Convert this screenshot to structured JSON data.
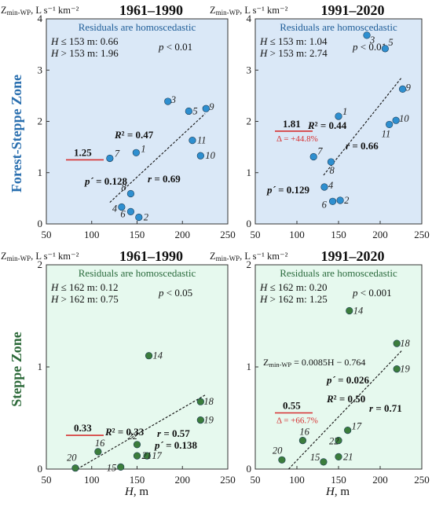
{
  "colors": {
    "forest_bg": "#dae8f7",
    "forest_point": "#2e8fd0",
    "forest_zone": "#2a6faf",
    "steppe_bg": "#e6f9ee",
    "steppe_point": "#3b7d3c",
    "steppe_zone": "#2d6a3a",
    "mean_line": "#d63031",
    "trend": "#111111"
  },
  "zones": {
    "forest": "Forest-Steppe Zone",
    "steppe": "Steppe Zone"
  },
  "xlabel_main": "H",
  "xlabel_unit": ", m",
  "chart_data": [
    {
      "id": "fs1",
      "type": "scatter",
      "title": "1961–1990",
      "zone": "forest",
      "ylabel_main": "Z",
      "ylabel_sub": "min-WP",
      "ylabel_unit": ", L s⁻¹ km⁻²",
      "xlim": [
        50,
        250
      ],
      "ylim": [
        0,
        4
      ],
      "xticks": [
        50,
        100,
        150,
        200,
        250
      ],
      "yticks": [
        0,
        1,
        2,
        3,
        4
      ],
      "homoscedastic": "Residuals are homoscedastic",
      "split_lines": [
        "H ≤ 153 m: 0.66",
        "H > 153 m: 1.96"
      ],
      "p_split": "p < 0.01",
      "r2": "R² = 0.47",
      "r": "r = 0.69",
      "p_prime": "p´ = 0.128",
      "mean": {
        "value": 1.25,
        "label": "1.25"
      },
      "trend": [
        [
          120,
          0.42
        ],
        [
          225,
          2.15
        ]
      ],
      "points": [
        {
          "label": "1",
          "x": 149,
          "y": 1.39
        },
        {
          "label": "2",
          "x": 152,
          "y": 0.13
        },
        {
          "label": "3",
          "x": 184,
          "y": 2.39
        },
        {
          "label": "4",
          "x": 133,
          "y": 0.33
        },
        {
          "label": "5",
          "x": 207,
          "y": 2.2
        },
        {
          "label": "6",
          "x": 143,
          "y": 0.24
        },
        {
          "label": "7",
          "x": 120,
          "y": 1.28
        },
        {
          "label": "8",
          "x": 143,
          "y": 0.59
        },
        {
          "label": "9",
          "x": 226,
          "y": 2.25
        },
        {
          "label": "10",
          "x": 220,
          "y": 1.33
        },
        {
          "label": "11",
          "x": 211,
          "y": 1.63
        }
      ]
    },
    {
      "id": "fs2",
      "type": "scatter",
      "title": "1991–2020",
      "zone": "forest",
      "ylabel_main": "Z",
      "ylabel_sub": "min-WP",
      "ylabel_unit": ", L s⁻¹ km⁻²",
      "xlim": [
        50,
        250
      ],
      "ylim": [
        0,
        4
      ],
      "xticks": [
        50,
        100,
        150,
        200,
        250
      ],
      "yticks": [
        0,
        1,
        2,
        3,
        4
      ],
      "homoscedastic": "Residuals are homoscedastic",
      "split_lines": [
        "H ≤ 153 m: 1.04",
        "H > 153 m: 2.74"
      ],
      "p_split": "p < 0.01",
      "r2": "R² = 0.44",
      "r": "r = 0.66",
      "p_prime": "p´ = 0.129",
      "mean": {
        "value": 1.81,
        "label": "1.81",
        "delta": "Δ = +44.8%"
      },
      "trend": [
        [
          132,
          0.95
        ],
        [
          226,
          2.86
        ]
      ],
      "points": [
        {
          "label": "1",
          "x": 150,
          "y": 2.1
        },
        {
          "label": "2",
          "x": 152,
          "y": 0.46
        },
        {
          "label": "3",
          "x": 184,
          "y": 3.68
        },
        {
          "label": "4",
          "x": 133,
          "y": 0.72
        },
        {
          "label": "5",
          "x": 206,
          "y": 3.42
        },
        {
          "label": "6",
          "x": 143,
          "y": 0.44
        },
        {
          "label": "7",
          "x": 120,
          "y": 1.31
        },
        {
          "label": "8",
          "x": 141,
          "y": 1.21
        },
        {
          "label": "9",
          "x": 227,
          "y": 2.63
        },
        {
          "label": "10",
          "x": 219,
          "y": 2.02
        },
        {
          "label": "11",
          "x": 211,
          "y": 1.94
        }
      ]
    },
    {
      "id": "st1",
      "type": "scatter",
      "title": "1961–1990",
      "zone": "steppe",
      "ylabel_main": "Z",
      "ylabel_sub": "min-WP",
      "ylabel_unit": ", L s⁻¹ km⁻²",
      "xlim": [
        50,
        250
      ],
      "ylim": [
        0,
        2
      ],
      "xticks": [
        50,
        100,
        150,
        200,
        250
      ],
      "yticks": [
        0,
        1,
        2
      ],
      "homoscedastic": "Residuals are homoscedastic",
      "split_lines": [
        "H ≤ 162 m: 0.12",
        "H > 162 m: 0.75"
      ],
      "p_split": "p < 0.05",
      "r2": "R² = 0.33",
      "r": "r = 0.57",
      "p_prime": "p´ = 0.138",
      "mean": {
        "value": 0.33,
        "label": "0.33"
      },
      "trend": [
        [
          84,
          0.0
        ],
        [
          226,
          0.73
        ]
      ],
      "points": [
        {
          "label": "14",
          "x": 163,
          "y": 1.11
        },
        {
          "label": "15",
          "x": 132,
          "y": 0.02
        },
        {
          "label": "16",
          "x": 107,
          "y": 0.17
        },
        {
          "label": "17",
          "x": 161,
          "y": 0.13
        },
        {
          "label": "18",
          "x": 220,
          "y": 0.66
        },
        {
          "label": "19",
          "x": 220,
          "y": 0.48
        },
        {
          "label": "20",
          "x": 82,
          "y": 0.01
        },
        {
          "label": "21",
          "x": 150,
          "y": 0.13
        },
        {
          "label": "22",
          "x": 150,
          "y": 0.24
        }
      ]
    },
    {
      "id": "st2",
      "type": "scatter",
      "title": "1991–2020",
      "zone": "steppe",
      "ylabel_main": "Z",
      "ylabel_sub": "min-WP",
      "ylabel_unit": ", L s⁻¹ km⁻²",
      "xlim": [
        50,
        250
      ],
      "ylim": [
        0,
        2
      ],
      "xticks": [
        50,
        100,
        150,
        200,
        250
      ],
      "yticks": [
        0,
        1,
        2
      ],
      "homoscedastic": "Residuals are homoscedastic",
      "split_lines": [
        "H ≤ 162 m: 0.20",
        "H > 162 m: 1.25"
      ],
      "p_split": "p < 0.001",
      "equation": "= 0.0085H − 0.764",
      "r2": "R² = 0.50",
      "r": "r = 0.71",
      "p_prime": "p´ = 0.026",
      "mean": {
        "value": 0.55,
        "label": "0.55",
        "delta": "Δ = +66.7%"
      },
      "trend": [
        [
          90,
          0.0
        ],
        [
          226,
          1.16
        ]
      ],
      "points": [
        {
          "label": "14",
          "x": 163,
          "y": 1.55
        },
        {
          "label": "15",
          "x": 132,
          "y": 0.07
        },
        {
          "label": "16",
          "x": 107,
          "y": 0.28
        },
        {
          "label": "17",
          "x": 161,
          "y": 0.38
        },
        {
          "label": "18",
          "x": 220,
          "y": 1.23
        },
        {
          "label": "19",
          "x": 220,
          "y": 0.98
        },
        {
          "label": "20",
          "x": 82,
          "y": 0.09
        },
        {
          "label": "21",
          "x": 150,
          "y": 0.12
        },
        {
          "label": "22",
          "x": 150,
          "y": 0.28
        }
      ]
    }
  ]
}
